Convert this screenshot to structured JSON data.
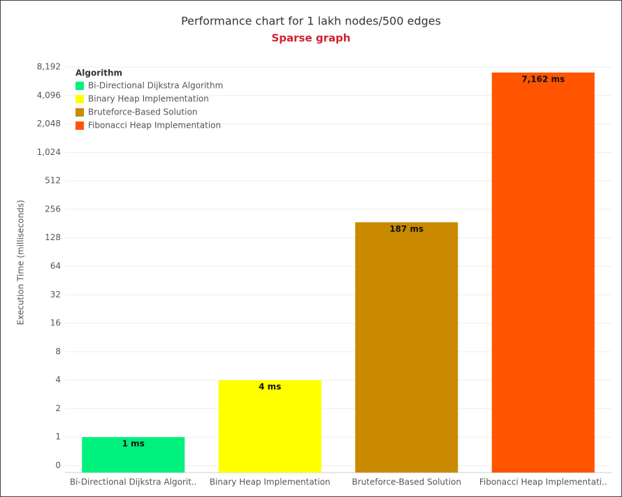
{
  "chart_data": {
    "type": "bar",
    "title": "Performance chart for 1 lakh nodes/500 edges",
    "subtitle": "Sparse graph",
    "y_label": "Execution Time (milliseconds)",
    "categories": [
      "Bi-Directional Dijkstra Algorit..",
      "Binary Heap Implementation",
      "Bruteforce-Based Solution",
      "Fibonacci Heap Implementati.."
    ],
    "values": [
      1,
      4,
      187,
      7162
    ],
    "value_labels": [
      "1 ms",
      "4 ms",
      "187 ms",
      "7,162 ms"
    ],
    "colors": [
      "#00f07e",
      "#ffff00",
      "#c98a00",
      "#ff5500"
    ],
    "legend": {
      "title": "Algorithm",
      "items": [
        "Bi-Directional Dijkstra Algorithm",
        "Binary Heap Implementation",
        "Bruteforce-Based Solution",
        "Fibonacci Heap Implementation"
      ],
      "position": "top-left"
    },
    "log_scale": true,
    "grid": true,
    "ylim": [
      0,
      8192
    ],
    "yticks": [
      0,
      1,
      2,
      4,
      8,
      16,
      32,
      64,
      128,
      256,
      512,
      {
        "value": 1024,
        "label": "1,024"
      },
      {
        "value": 2048,
        "label": "2,048"
      },
      {
        "value": 4096,
        "label": "4,096"
      },
      {
        "value": 8192,
        "label": "8,192"
      }
    ]
  }
}
